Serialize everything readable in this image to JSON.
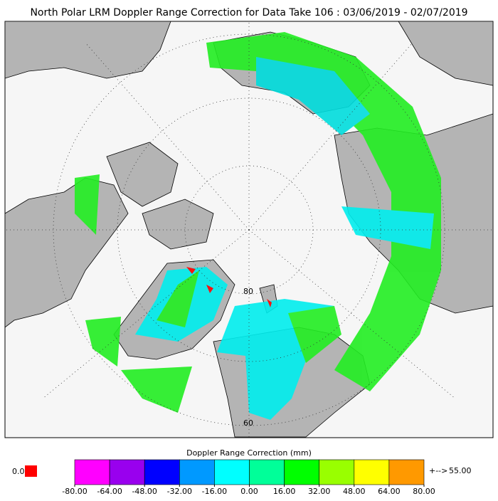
{
  "title": "North Polar LRM Doppler Range Correction for Data Take 106 : 03/06/2019 - 02/07/2019",
  "map": {
    "lat_labels": [
      "80",
      "60"
    ]
  },
  "colorbar": {
    "title": "Doppler Range Correction (mm)",
    "colors": [
      "#ff00ff",
      "#9900ee",
      "#0000ff",
      "#0099ff",
      "#00ffff",
      "#00ff99",
      "#00ff00",
      "#99ff00",
      "#ffff00",
      "#ff9900"
    ],
    "ticks": [
      {
        "value": -80,
        "label": "-80.00"
      },
      {
        "value": -64,
        "label": "-64.00"
      },
      {
        "value": -48,
        "label": "-48.00"
      },
      {
        "value": -32,
        "label": "-32.00"
      },
      {
        "value": -16,
        "label": "-16.00"
      },
      {
        "value": 0,
        "label": "0.00"
      },
      {
        "value": 16,
        "label": "16.00"
      },
      {
        "value": 32,
        "label": "32.00"
      },
      {
        "value": 48,
        "label": "48.00"
      },
      {
        "value": 64,
        "label": "64.00"
      },
      {
        "value": 80,
        "label": "80.00"
      }
    ],
    "below": {
      "value": 0,
      "label": "0.0",
      "color": "#ff0000"
    },
    "above": {
      "arrow": "+-->",
      "value": 55,
      "label": "55.00",
      "color": "#ff9900"
    }
  }
}
